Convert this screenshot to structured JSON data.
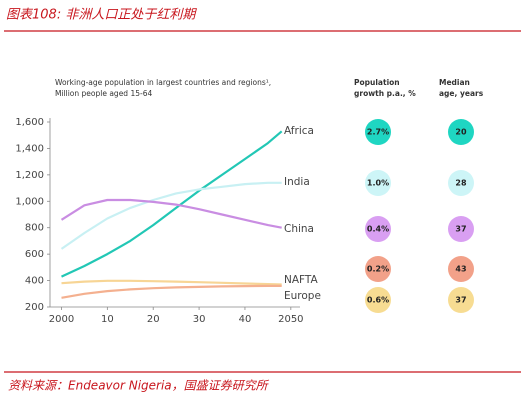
{
  "header": {
    "title": "图表108: 非洲人口正处于红利期"
  },
  "chart_data": {
    "type": "line",
    "title": "Working-age population in largest countries and regions¹,",
    "subtitle": "Million people aged 15-64",
    "x": [
      2000,
      2005,
      2010,
      2015,
      2020,
      2025,
      2030,
      2035,
      2040,
      2045,
      2048
    ],
    "series": [
      {
        "name": "Africa",
        "color": "#22c7b5",
        "values": [
          430,
          510,
          600,
          700,
          820,
          950,
          1080,
          1200,
          1320,
          1440,
          1530
        ]
      },
      {
        "name": "India",
        "color": "#c8f0f3",
        "values": [
          640,
          760,
          870,
          950,
          1010,
          1060,
          1090,
          1110,
          1130,
          1140,
          1140
        ]
      },
      {
        "name": "China",
        "color": "#c98de2",
        "values": [
          860,
          970,
          1010,
          1010,
          995,
          975,
          940,
          900,
          860,
          820,
          800
        ]
      },
      {
        "name": "NAFTA",
        "color": "#f7d595",
        "values": [
          380,
          392,
          398,
          398,
          395,
          392,
          388,
          383,
          378,
          373,
          370
        ]
      },
      {
        "name": "Europe",
        "color": "#f4b08f",
        "values": [
          270,
          300,
          320,
          333,
          342,
          348,
          352,
          356,
          358,
          360,
          360
        ]
      }
    ],
    "xlim": [
      1997.5,
      2052
    ],
    "xticks": [
      2000,
      {
        "value": 2010,
        "label": "10"
      },
      {
        "value": 2020,
        "label": "20"
      },
      {
        "value": 2030,
        "label": "30"
      },
      {
        "value": 2040,
        "label": "40"
      },
      2050
    ],
    "ylim": [
      200,
      1600
    ],
    "yticks": [
      200,
      400,
      600,
      800,
      {
        "value": 1000,
        "label": "1,000"
      },
      {
        "value": 1200,
        "label": "1,200"
      },
      {
        "value": 1400,
        "label": "1,400"
      },
      {
        "value": 1600,
        "label": "1,600"
      }
    ],
    "grid": false
  },
  "table": {
    "columns": [
      [
        "Population",
        "growth p.a., %"
      ],
      [
        "Median",
        "age, years"
      ]
    ],
    "rows": [
      {
        "growth": 2.7,
        "growth_label": "2.7%",
        "median_age": 20,
        "color": "#1fd6c2"
      },
      {
        "growth": 1.0,
        "growth_label": "1.0%",
        "median_age": 28,
        "color": "#cdf5f7"
      },
      {
        "growth": 0.4,
        "growth_label": "0.4%",
        "median_age": 37,
        "color": "#d99ff2"
      },
      {
        "growth": 0.2,
        "growth_label": "0.2%",
        "median_age": 43,
        "color": "#f2a189"
      },
      {
        "growth": 0.6,
        "growth_label": "0.6%",
        "median_age": 37,
        "color": "#f7dc92"
      }
    ]
  },
  "source": "资料来源：Endeavor Nigeria，国盛证券研究所"
}
